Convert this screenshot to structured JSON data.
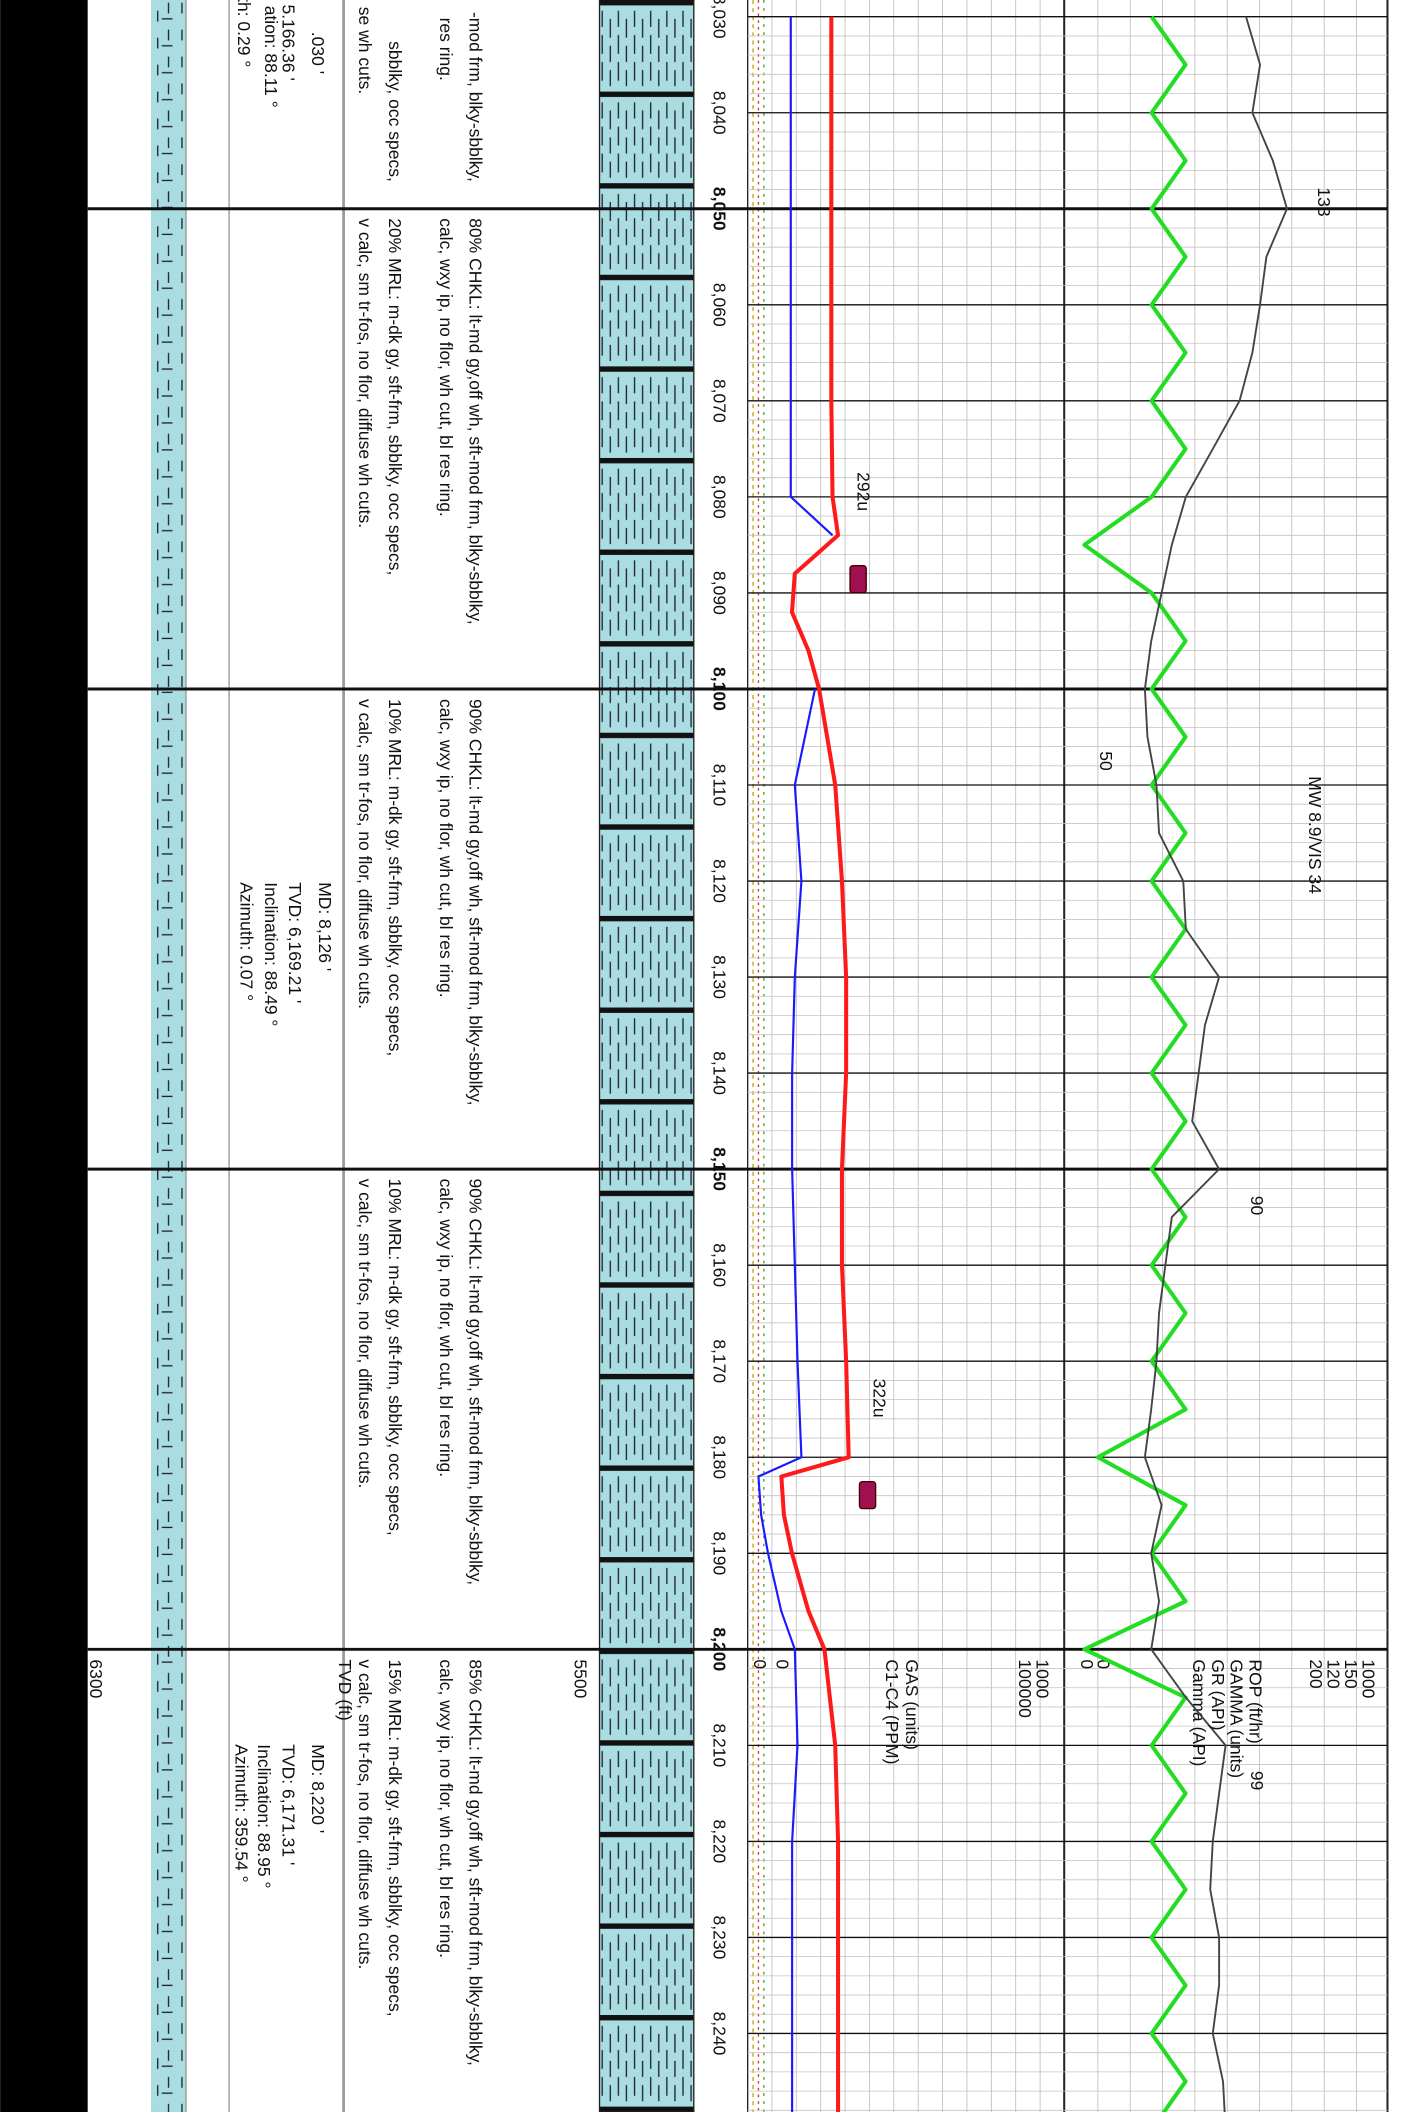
{
  "depth_ticks": [
    {
      "value": 8030,
      "label": "8,030"
    },
    {
      "value": 8040,
      "label": "8,040"
    },
    {
      "value": 8050,
      "label": "8,050"
    },
    {
      "value": 8060,
      "label": "8,060"
    },
    {
      "value": 8070,
      "label": "8,070"
    },
    {
      "value": 8080,
      "label": "8,080"
    },
    {
      "value": 8090,
      "label": "8,090"
    },
    {
      "value": 8100,
      "label": "8,100"
    },
    {
      "value": 8110,
      "label": "8,110"
    },
    {
      "value": 8120,
      "label": "8,120"
    },
    {
      "value": 8130,
      "label": "8,130"
    },
    {
      "value": 8140,
      "label": "8,140"
    },
    {
      "value": 8150,
      "label": "8,150"
    },
    {
      "value": 8160,
      "label": "8,160"
    },
    {
      "value": 8170,
      "label": "8,170"
    },
    {
      "value": 8180,
      "label": "8,180"
    },
    {
      "value": 8190,
      "label": "8,190"
    },
    {
      "value": 8200,
      "label": "8,200"
    },
    {
      "value": 8210,
      "label": "8,210"
    },
    {
      "value": 8220,
      "label": "8,220"
    },
    {
      "value": 8230,
      "label": "8,230"
    },
    {
      "value": 8240,
      "label": "8,240"
    }
  ],
  "descriptions": [
    {
      "lines": [
        "-mod frm, blky-sbblky,",
        "res ring.",
        "sbblky, occ specs,",
        "se wh cuts."
      ]
    },
    {
      "lines": [
        "80% CHKL: lt-md gy,off wh, sft-mod frm, blky-sbblky,",
        "calc, wxy ip, no flor, wh cut, bl res ring.",
        "20% MRL: m-dk gy, sft-frm, sbblky, occ specs,",
        "v calc, sm tr-fos, no flor, diffuse wh cuts."
      ]
    },
    {
      "lines": [
        "90% CHKL: lt-md gy,off wh, sft-mod frm, blky-sbblky,",
        "calc, wxy ip, no flor, wh cut, bl res ring.",
        "10% MRL: m-dk gy, sft-frm, sbblky, occ specs,",
        "v calc, sm tr-fos, no flor, diffuse wh cuts."
      ]
    },
    {
      "lines": [
        "90% CHKL: lt-md gy,off wh, sft-mod frm, blky-sbblky,",
        "calc, wxy ip, no flor, wh cut, bl res ring.",
        "10% MRL: m-dk gy, sft-frm, sbblky, occ specs,",
        "v calc, sm tr-fos, no flor, diffuse wh cuts."
      ]
    },
    {
      "lines": [
        "85% CHKL: lt-md gy,off wh, sft-mod frm, blky-sbblky,",
        "calc, wxy ip, no flor, wh cut, bl res ring.",
        "15% MRL: m-dk gy, sft-frm, sbblky, occ specs,",
        "v calc, sm tr-fos, no flor, diffuse wh cuts."
      ]
    }
  ],
  "surveys": [
    {
      "lines": [
        ".030 '",
        "5.166.36 '",
        "ation: 88.11 °",
        "th: 0.29 °"
      ]
    },
    {
      "lines": [
        "MD: 8,126 '",
        "TVD: 6,169.21 '",
        "Inclination: 88.49 °",
        "Azimuth: 0.07 °"
      ]
    },
    {
      "lines": [
        "MD: 8,220 '",
        "TVD: 6,171.31 '",
        "Inclination: 88.95 °",
        "Azimuth: 359.54 °"
      ]
    }
  ],
  "tvd_axis": {
    "title": "TVD (ft)",
    "labels": [
      6300,
      5500
    ]
  },
  "annotations": [
    "292u",
    "322u",
    "133",
    "50",
    "MW 8.9/VIS 34",
    "90",
    "99"
  ],
  "tracks": [
    {
      "label": "GAS (units)",
      "color": "#ff1a1a",
      "scale": [
        0,
        1000
      ],
      "depths": [
        8030,
        8040,
        8050,
        8060,
        8070,
        8080,
        8084,
        8088,
        8092,
        8096,
        8100,
        8110,
        8120,
        8130,
        8140,
        8150,
        8160,
        8170,
        8180,
        8182,
        8186,
        8190,
        8196,
        8200,
        8210,
        8220,
        8230,
        8240,
        8250
      ],
      "values": [
        192,
        192,
        192,
        192,
        192,
        197,
        218,
        52,
        41,
        104,
        145,
        207,
        233,
        249,
        249,
        233,
        233,
        249,
        259,
        0,
        10,
        41,
        104,
        166,
        207,
        218,
        218,
        218,
        218
      ]
    },
    {
      "label": "C1-C4 (PPM)",
      "color": "#1a1aff",
      "scale": [
        0,
        100000
      ],
      "depths": [
        8030,
        8040,
        8050,
        8060,
        8070,
        8080,
        8084,
        8088,
        8092,
        8096,
        8100,
        8110,
        8120,
        8130,
        8140,
        8150,
        8160,
        8170,
        8180,
        8182,
        8186,
        8190,
        8196,
        8200,
        8210,
        8220,
        8230,
        8240,
        8250
      ],
      "values": [
        12200,
        12200,
        12200,
        12200,
        12200,
        12200,
        27900,
        null,
        null,
        null,
        21300,
        13700,
        16200,
        13700,
        12700,
        12700,
        13700,
        14700,
        16200,
        0,
        1000,
        3600,
        8600,
        13700,
        14700,
        12700,
        12700,
        12700,
        12700
      ]
    },
    {
      "label": "ROP (ft/hr)",
      "color": "#22dd22",
      "scale": [
        0,
        1000
      ],
      "depths": [
        8030,
        8035,
        8040,
        8045,
        8050,
        8055,
        8060,
        8065,
        8070,
        8075,
        8080,
        8085,
        8090,
        8095,
        8100,
        8105,
        8110,
        8115,
        8120,
        8125,
        8130,
        8135,
        8140,
        8145,
        8150,
        8155,
        8160,
        8165,
        8170,
        8175,
        8180,
        8185,
        8190,
        8195,
        8200,
        8205,
        8210,
        8215,
        8220,
        8225,
        8230,
        8235,
        8240,
        8245,
        8250
      ],
      "values": [
        240,
        361,
        240,
        361,
        240,
        361,
        240,
        361,
        240,
        361,
        240,
        0,
        240,
        361,
        240,
        361,
        240,
        361,
        240,
        361,
        240,
        361,
        240,
        361,
        240,
        361,
        240,
        361,
        240,
        361,
        48,
        361,
        240,
        361,
        0,
        361,
        240,
        361,
        240,
        361,
        240,
        361,
        240,
        361,
        240
      ]
    },
    {
      "label": "Gamma (API)",
      "color": "#444444",
      "scale": [
        0,
        200
      ],
      "depths": [
        8030,
        8035,
        8040,
        8045,
        8050,
        8055,
        8060,
        8065,
        8070,
        8075,
        8080,
        8085,
        8090,
        8095,
        8100,
        8105,
        8110,
        8115,
        8120,
        8125,
        8130,
        8135,
        8140,
        8145,
        8150,
        8155,
        8160,
        8165,
        8170,
        8175,
        8180,
        8185,
        8190,
        8195,
        8200,
        8205,
        8210,
        8215,
        8220,
        8225,
        8230,
        8235,
        8240,
        8245,
        8250
      ],
      "values": [
        121,
        132,
        126,
        142,
        153,
        137,
        132,
        126,
        116,
        95,
        74,
        63,
        55,
        47,
        42,
        44,
        51,
        53,
        72,
        74,
        100,
        89,
        84,
        79,
        100,
        63,
        58,
        53,
        51,
        47,
        42,
        55,
        47,
        53,
        47,
        74,
        105,
        100,
        95,
        93,
        100,
        100,
        95,
        103,
        105
      ]
    },
    {
      "label": "GAMMA (units)",
      "color": "#b22222",
      "scale": [
        150
      ]
    },
    {
      "label": "GR (API)",
      "color": "#111111",
      "scale": [
        120
      ]
    }
  ]
}
